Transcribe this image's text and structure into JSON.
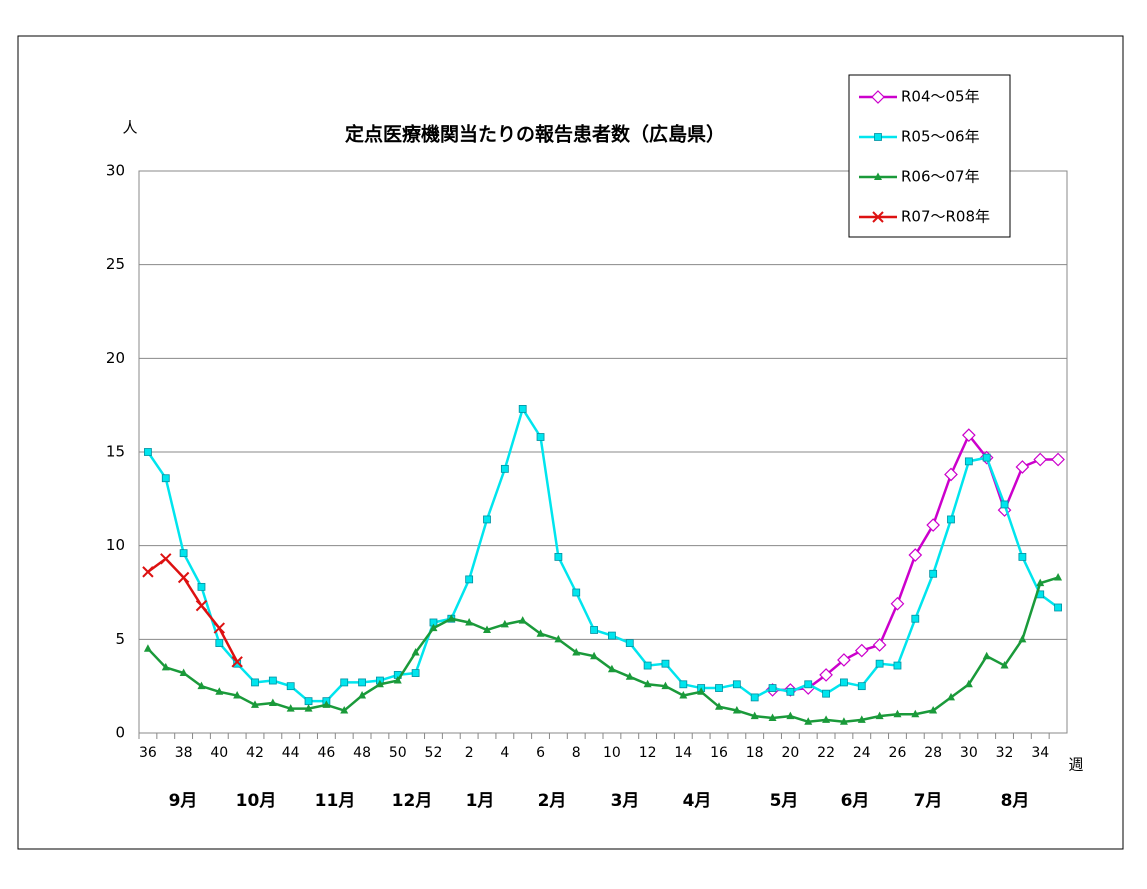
{
  "chart_data": {
    "type": "line",
    "title": "定点医療機関当たりの報告患者数（広島県）",
    "y_label": "人",
    "x_label": "週",
    "categories": [
      "36",
      null,
      "38",
      null,
      "40",
      null,
      "42",
      null,
      "44",
      null,
      "46",
      null,
      "48",
      null,
      "50",
      null,
      "52",
      null,
      "2",
      null,
      "4",
      null,
      "6",
      null,
      "8",
      null,
      "10",
      null,
      "12",
      null,
      "14",
      null,
      "16",
      null,
      "18",
      null,
      "20",
      null,
      "22",
      null,
      "24",
      null,
      "26",
      null,
      "28",
      null,
      "30",
      null,
      "32",
      null,
      "34",
      null
    ],
    "month_labels": [
      "9月",
      "10月",
      "11月",
      "12月",
      "1月",
      "2月",
      "3月",
      "4月",
      "5月",
      "6月",
      "7月",
      "8月"
    ],
    "ylim": [
      0,
      30
    ],
    "yticks": [
      0,
      5,
      10,
      15,
      20,
      25,
      30
    ],
    "grid": true,
    "legend": "upper right",
    "series": [
      {
        "name": "R04～05年",
        "color": "#cc00cc",
        "marker": "diamond",
        "values": [
          null,
          null,
          null,
          null,
          null,
          null,
          null,
          null,
          null,
          null,
          null,
          null,
          null,
          null,
          null,
          null,
          null,
          null,
          null,
          null,
          null,
          null,
          null,
          null,
          null,
          null,
          null,
          null,
          null,
          null,
          null,
          null,
          null,
          null,
          null,
          2.3,
          2.3,
          2.4,
          3.1,
          3.9,
          4.4,
          4.7,
          6.9,
          9.5,
          11.1,
          13.8,
          15.9,
          14.7,
          11.9,
          14.2,
          14.6,
          14.6
        ]
      },
      {
        "name": "R05～06年",
        "color": "#00e5ee",
        "marker": "square",
        "values": [
          15.0,
          13.6,
          9.6,
          7.8,
          4.8,
          3.7,
          2.7,
          2.8,
          2.5,
          1.7,
          1.7,
          2.7,
          2.7,
          2.8,
          3.1,
          3.2,
          5.9,
          6.1,
          8.2,
          11.4,
          14.1,
          17.3,
          15.8,
          9.4,
          7.5,
          5.5,
          5.2,
          4.8,
          3.6,
          3.7,
          2.6,
          2.4,
          2.4,
          2.6,
          1.9,
          2.4,
          2.2,
          2.6,
          2.1,
          2.7,
          2.5,
          3.7,
          3.6,
          6.1,
          8.5,
          11.4,
          14.5,
          14.7,
          12.2,
          9.4,
          7.4,
          6.7
        ]
      },
      {
        "name": "R06～07年",
        "color": "#1a9a3a",
        "marker": "triangle",
        "values": [
          4.5,
          3.5,
          3.2,
          2.5,
          2.2,
          2.0,
          1.5,
          1.6,
          1.3,
          1.3,
          1.5,
          1.2,
          2.0,
          2.6,
          2.8,
          4.3,
          5.6,
          6.1,
          5.9,
          5.5,
          5.8,
          6.0,
          5.3,
          5.0,
          4.3,
          4.1,
          3.4,
          3.0,
          2.6,
          2.5,
          2.0,
          2.2,
          1.4,
          1.2,
          0.9,
          0.8,
          0.9,
          0.6,
          0.7,
          0.6,
          0.7,
          0.9,
          1.0,
          1.0,
          1.2,
          1.9,
          2.6,
          4.1,
          3.6,
          5.0,
          8.0,
          8.3
        ]
      },
      {
        "name": "R07～R08年",
        "color": "#dd1111",
        "marker": "x",
        "values": [
          8.6,
          9.3,
          8.3,
          6.8,
          5.6,
          3.8,
          null,
          null,
          null,
          null,
          null,
          null,
          null,
          null,
          null,
          null,
          null,
          null,
          null,
          null,
          null,
          null,
          null,
          null,
          null,
          null,
          null,
          null,
          null,
          null,
          null,
          null,
          null,
          null,
          null,
          null,
          null,
          null,
          null,
          null,
          null,
          null,
          null,
          null,
          null,
          null,
          null,
          null,
          null,
          null,
          null,
          null
        ]
      }
    ]
  }
}
